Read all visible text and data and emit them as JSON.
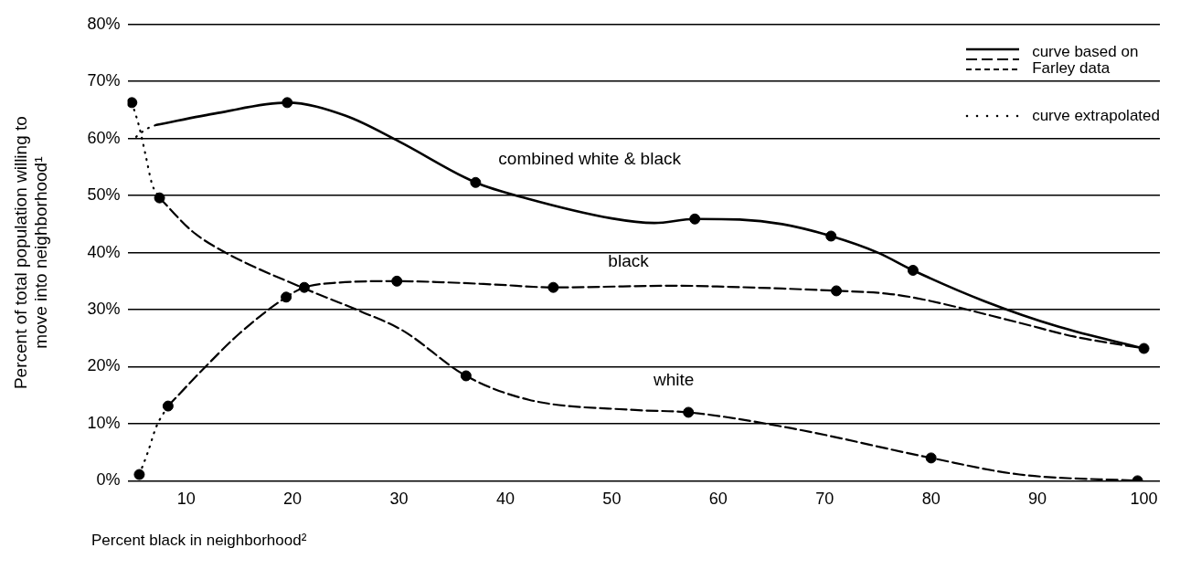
{
  "chart_data": {
    "type": "line",
    "xlabel": "Percent black in neighborhood²",
    "ylabel": "Percent of total population willing to move into neighborhood¹",
    "xlim": [
      4.5,
      101.5
    ],
    "xticks": [
      10,
      20,
      30,
      40,
      50,
      60,
      70,
      80,
      90,
      100
    ],
    "ylim": [
      0,
      80
    ],
    "yticks": [
      {
        "value": 0,
        "label": "0%"
      },
      {
        "value": 10,
        "label": "10%"
      },
      {
        "value": 20,
        "label": "20%"
      },
      {
        "value": 30,
        "label": "30%"
      },
      {
        "value": 40,
        "label": "40%"
      },
      {
        "value": 50,
        "label": "50%"
      },
      {
        "value": 60,
        "label": "60%"
      },
      {
        "value": 70,
        "label": "70%"
      },
      {
        "value": 80,
        "label": "80%"
      }
    ],
    "grid": "y",
    "legend": false,
    "annotations": [
      "curve based on Farley data",
      "curve extrapolated"
    ],
    "series": [
      {
        "name": "combined white & black",
        "color": "#000000",
        "line_style": "solid",
        "marker": "none",
        "x": [
          7.2,
          13,
          19.5,
          25,
          30,
          37.2,
          42,
          50,
          54,
          57.8,
          62,
          66,
          70.6,
          75,
          78.3,
          85,
          92,
          100
        ],
        "values": [
          62.4,
          64.5,
          66.3,
          64,
          59.5,
          52.3,
          49.5,
          46,
          45.2,
          45.9,
          45.8,
          45,
          42.9,
          40,
          36.9,
          31.5,
          27,
          23.2
        ]
      },
      {
        "name": "black",
        "color": "#000000",
        "line_style": "dashed",
        "marker": "none",
        "x": [
          8.3,
          11.3,
          15,
          19.4,
          21.1,
          24,
          29.8,
          34.2,
          39.1,
          44.5,
          56,
          61.1,
          66,
          71.1,
          75.9,
          78.7,
          88.3,
          93.4,
          100
        ],
        "values": [
          13.1,
          19,
          25.8,
          32.2,
          33.9,
          34.7,
          35,
          34.8,
          34.4,
          33.9,
          34.2,
          34,
          33.7,
          33.3,
          32.8,
          32,
          27.7,
          25.3,
          23.2
        ]
      },
      {
        "name": "white",
        "color": "#000000",
        "line_style": "dashed",
        "marker": "none",
        "x": [
          7.5,
          10.6,
          13.7,
          21,
          26.4,
          30.3,
          36.3,
          42.2,
          52.2,
          57.2,
          66.9,
          80,
          88.3,
          99.4
        ],
        "values": [
          49.6,
          43.7,
          40,
          33.8,
          29.7,
          26.4,
          18.4,
          14.2,
          12.4,
          12,
          9.2,
          4,
          1.1,
          0
        ]
      },
      {
        "color": "#000000",
        "line_style": "dotted",
        "marker": "none",
        "x": [
          4.9,
          5.6,
          6.2,
          6.8,
          7.5
        ],
        "values": [
          66.3,
          62,
          57,
          52,
          49.6
        ]
      },
      {
        "color": "#000000",
        "line_style": "dotted",
        "marker": "none",
        "x": [
          5.3,
          6.2,
          7.2
        ],
        "values": [
          60.3,
          61.6,
          62.4
        ]
      },
      {
        "color": "#000000",
        "line_style": "dotted",
        "marker": "none",
        "x": [
          5.6,
          6.4,
          7.2,
          8.3
        ],
        "values": [
          1.1,
          5,
          9.5,
          13.1
        ]
      },
      {
        "type": "scatter",
        "color": "#000000",
        "marker": "circle",
        "x": [
          4.9,
          7.5,
          19.5,
          37.2,
          57.8,
          70.6,
          78.3,
          100,
          8.3,
          19.4,
          21.1,
          29.8,
          44.5,
          71.1,
          36.3,
          57.2,
          80,
          99.4,
          5.6
        ],
        "values": [
          66.3,
          49.6,
          66.3,
          52.3,
          45.9,
          42.9,
          36.9,
          23.2,
          13.1,
          32.2,
          33.9,
          35,
          33.9,
          33.3,
          18.4,
          12,
          4,
          0,
          1.1
        ]
      }
    ]
  }
}
